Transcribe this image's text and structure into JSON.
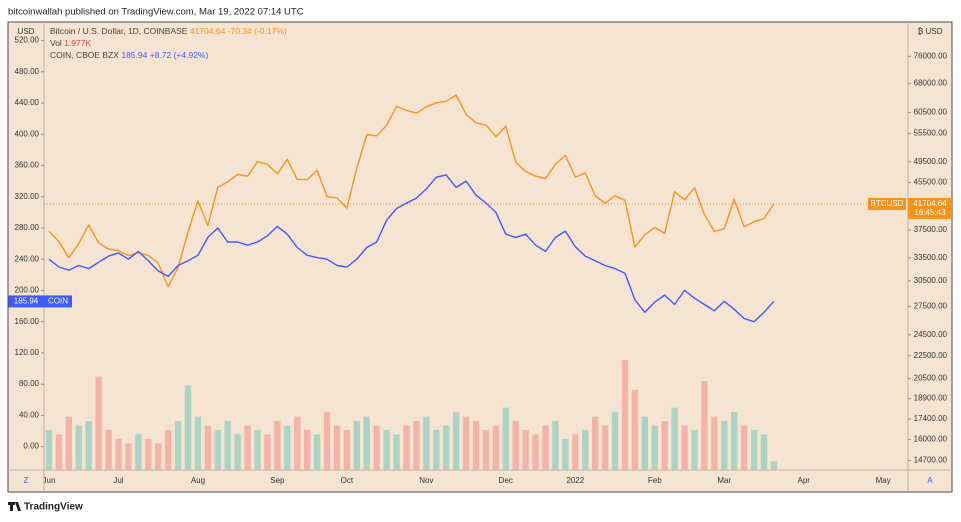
{
  "header": "bitcoinwallah published on TradingView.com, Mar 19, 2022 07:14 UTC",
  "footer": "TradingView",
  "chart_data": {
    "type": "line",
    "categories": [
      "Jun",
      null,
      null,
      null,
      null,
      null,
      null,
      "Jul",
      null,
      null,
      null,
      null,
      null,
      null,
      null,
      "Aug",
      null,
      null,
      null,
      null,
      null,
      null,
      null,
      "Sep",
      null,
      null,
      null,
      null,
      null,
      null,
      "Oct",
      null,
      null,
      null,
      null,
      null,
      null,
      null,
      "Nov",
      null,
      null,
      null,
      null,
      null,
      null,
      null,
      "Dec",
      null,
      null,
      null,
      null,
      null,
      null,
      "2022",
      null,
      null,
      null,
      null,
      null,
      null,
      null,
      "Feb",
      null,
      null,
      null,
      null,
      null,
      null,
      "Mar",
      null,
      null,
      null,
      null,
      null,
      null,
      null,
      "Apr",
      null,
      null,
      null,
      null,
      null,
      null,
      null,
      "May",
      null,
      null
    ],
    "series": [
      {
        "name": "Bitcoin / U.S. Dollar, 1D, COINBASE",
        "short_name": "BTCUSD",
        "color": "#f7931a",
        "axis": "y2",
        "change_label": "-70.34 (-0.17%)",
        "countdown": "16:45:43",
        "values": [
          37300,
          35800,
          33500,
          35500,
          38300,
          35600,
          34700,
          34500,
          33800,
          34200,
          33800,
          32800,
          29800,
          32200,
          37200,
          42200,
          38200,
          44600,
          45600,
          47000,
          46700,
          49500,
          49000,
          47100,
          50000,
          46100,
          46000,
          47800,
          43000,
          42700,
          41000,
          48200,
          55300,
          55000,
          57400,
          62000,
          61000,
          60300,
          61900,
          62900,
          63300,
          64900,
          60000,
          58000,
          57500,
          54800,
          57200,
          49400,
          47600,
          46700,
          46200,
          49000,
          50800,
          46500,
          47300,
          43100,
          41800,
          43100,
          42300,
          35000,
          36800,
          37900,
          37000,
          43800,
          42400,
          44500,
          40000,
          37300,
          37700,
          42500,
          38000,
          38800,
          39300,
          41704.64,
          null,
          null,
          null,
          null,
          null,
          null,
          null,
          null,
          null,
          null,
          null,
          null,
          null
        ]
      },
      {
        "name": "COIN, CBOE BZX",
        "short_name": "COIN",
        "color": "#3d5afe",
        "change_label": "+8.72 (+4.92%)",
        "values": [
          240,
          230,
          226,
          232,
          228,
          236,
          244,
          248,
          240,
          250,
          238,
          225,
          218,
          232,
          238,
          245,
          268,
          280,
          262,
          262,
          258,
          262,
          270,
          282,
          272,
          255,
          245,
          242,
          240,
          232,
          230,
          240,
          255,
          262,
          290,
          305,
          312,
          318,
          330,
          345,
          348,
          332,
          340,
          322,
          312,
          300,
          272,
          268,
          272,
          258,
          250,
          268,
          276,
          256,
          244,
          238,
          232,
          228,
          222,
          188,
          172,
          185,
          194,
          182,
          200,
          190,
          182,
          174,
          186,
          176,
          164,
          160,
          172,
          185.94,
          null,
          null,
          null,
          null,
          null,
          null,
          null,
          null,
          null,
          null,
          null,
          null,
          null
        ]
      },
      {
        "name": "Vol",
        "type": "bar",
        "axis": "y3",
        "up_color": "#9fd0c2",
        "down_color": "#f2aaa2",
        "last_value_label": "1.977K",
        "values": [
          9,
          8,
          12,
          10,
          11,
          21,
          9,
          7,
          6,
          8,
          7,
          6,
          9,
          11,
          19,
          12,
          10,
          9,
          11,
          8,
          10,
          9,
          8,
          11,
          10,
          12,
          9,
          8,
          13,
          10,
          9,
          11,
          12,
          10,
          9,
          8,
          10,
          11,
          12,
          9,
          10,
          13,
          12,
          11,
          9,
          10,
          14,
          11,
          9,
          8,
          10,
          11,
          7,
          8,
          9,
          12,
          10,
          13,
          24.7,
          18,
          12,
          10,
          11,
          14,
          10,
          9,
          20,
          12,
          11,
          13,
          10,
          9,
          8,
          1.977,
          null,
          null,
          null,
          null,
          null,
          null,
          null,
          null,
          null,
          null,
          null,
          null,
          null
        ]
      }
    ],
    "y_unit": "USD",
    "ylim": [
      -30,
      540
    ],
    "yticks": [
      {
        "value": 0,
        "label": "0.00"
      },
      {
        "value": 40,
        "label": "40.00"
      },
      {
        "value": 80,
        "label": "80.00"
      },
      {
        "value": 120,
        "label": "120.00"
      },
      {
        "value": 160,
        "label": "160.00"
      },
      {
        "value": 200,
        "label": "200.00"
      },
      {
        "value": 240,
        "label": "240.00"
      },
      {
        "value": 280,
        "label": "280.00"
      },
      {
        "value": 320,
        "label": "320.00"
      },
      {
        "value": 360,
        "label": "360.00"
      },
      {
        "value": 400,
        "label": "400.00"
      },
      {
        "value": 440,
        "label": "440.00"
      },
      {
        "value": 480,
        "label": "480.00"
      },
      {
        "value": 520,
        "label": "520.00"
      }
    ],
    "y2_unit": "₿ USD",
    "y2_log": true,
    "y2lim": [
      14140,
      86300
    ],
    "y2ticks": [
      {
        "value": 76000,
        "label": "76000.00"
      },
      {
        "value": 68000,
        "label": "68000.00"
      },
      {
        "value": 60500,
        "label": "60500.00"
      },
      {
        "value": 55500,
        "label": "55500.00"
      },
      {
        "value": 49500,
        "label": "49500.00"
      },
      {
        "value": 45500,
        "label": "45500.00"
      },
      {
        "value": 37500,
        "label": "37500.00"
      },
      {
        "value": 33500,
        "label": "33500.00"
      },
      {
        "value": 30500,
        "label": "30500.00"
      },
      {
        "value": 27500,
        "label": "27500.00"
      },
      {
        "value": 24500,
        "label": "24500.00"
      },
      {
        "value": 22500,
        "label": "22500.00"
      },
      {
        "value": 20500,
        "label": "20500.00"
      },
      {
        "value": 18900,
        "label": "18900.00"
      },
      {
        "value": 17400,
        "label": "17400.00"
      },
      {
        "value": 16000,
        "label": "16000.00"
      },
      {
        "value": 14700,
        "label": "14700.00"
      }
    ],
    "y3lim": [
      0,
      100
    ],
    "buttons": [
      "Z",
      "A"
    ]
  }
}
